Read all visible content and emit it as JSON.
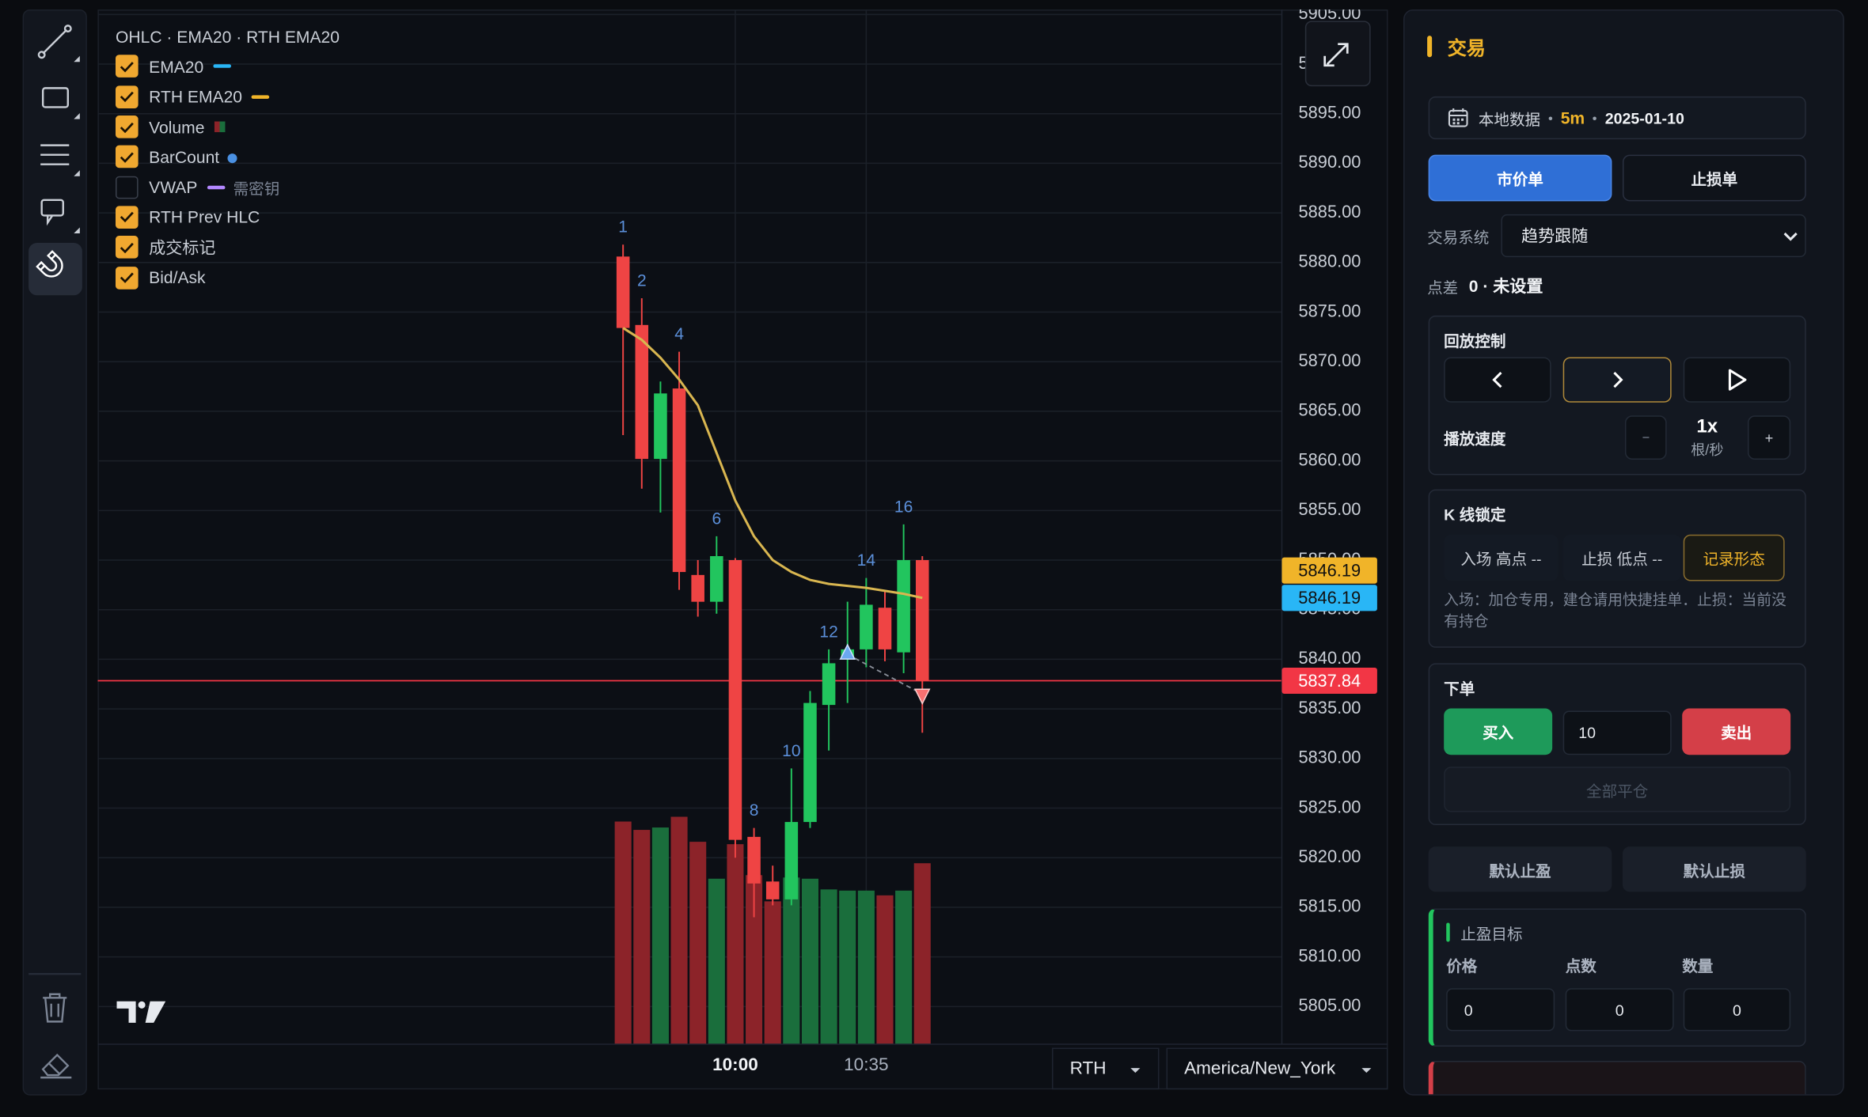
{
  "chart": {
    "type": "candlestick",
    "legend_title": "OHLC · EMA20 · RTH EMA20",
    "legend": [
      {
        "label": "EMA20",
        "checked": true,
        "marker": "dash",
        "color": "#29b6f6"
      },
      {
        "label": "RTH EMA20",
        "checked": true,
        "marker": "dash",
        "color": "#f0b429"
      },
      {
        "label": "Volume",
        "checked": true,
        "marker": "square",
        "color": "#8c2329"
      },
      {
        "label": "BarCount",
        "checked": true,
        "marker": "dot",
        "color": "#4a90e2"
      },
      {
        "label": "VWAP",
        "checked": false,
        "marker": "dash",
        "color": "#b388ff",
        "note": "需密钥"
      },
      {
        "label": "RTH Prev HLC",
        "checked": true
      },
      {
        "label": "成交标记",
        "checked": true
      },
      {
        "label": "Bid/Ask",
        "checked": true
      }
    ],
    "categories": [
      null,
      null,
      null,
      null,
      null,
      null,
      "10:00",
      null,
      null,
      null,
      null,
      null,
      null,
      "10:35",
      null,
      null,
      null
    ],
    "open": [
      5880.6,
      5873.7,
      5860.2,
      5867.3,
      5848.5,
      5845.8,
      5850,
      5822.1,
      5817.6,
      5815.8,
      5823.6,
      5835.4,
      5840,
      5841,
      5845.2,
      5840.7,
      5850
    ],
    "high": [
      5881.8,
      5876.4,
      5868,
      5871,
      5850,
      5852.4,
      5850.2,
      5823,
      5819.2,
      5829,
      5836.8,
      5841,
      5845.8,
      5848.2,
      5847,
      5853.6,
      5850.4
    ],
    "low": [
      5862.6,
      5857.2,
      5854.8,
      5847,
      5844.3,
      5844.6,
      5820,
      5814,
      5815.2,
      5815.2,
      5823,
      5830.8,
      5835.6,
      5839.2,
      5839.8,
      5838.6,
      5832.6
    ],
    "close": [
      5873.4,
      5860.2,
      5866.8,
      5848.8,
      5845.8,
      5850.4,
      5821.8,
      5817.4,
      5815.8,
      5823.6,
      5835.6,
      5839.6,
      5841,
      5845.5,
      5841,
      5850,
      5837.84
    ],
    "volume": [
      187,
      180,
      182,
      191,
      170,
      139,
      168,
      142,
      120,
      140,
      139,
      130,
      129,
      129,
      125,
      129,
      152
    ],
    "ema": {
      "color": "#d9b650",
      "values": [
        5873.4,
        5872.2,
        5870.4,
        5868.2,
        5865.6,
        5860.8,
        5856,
        5852.4,
        5850,
        5848.8,
        5848,
        5847.6,
        5847.4,
        5847.2,
        5846.9,
        5846.6,
        5846.19
      ]
    },
    "bar_numbers": [
      1,
      2,
      null,
      4,
      null,
      6,
      null,
      8,
      null,
      10,
      null,
      12,
      null,
      14,
      null,
      16,
      null
    ],
    "buy_marks": [
      null,
      null,
      null,
      null,
      null,
      null,
      null,
      null,
      null,
      null,
      null,
      null,
      5840.5,
      null,
      null,
      null,
      null
    ],
    "sell_marks": [
      null,
      null,
      null,
      null,
      null,
      null,
      null,
      null,
      null,
      null,
      null,
      null,
      null,
      null,
      null,
      null,
      5836.5
    ],
    "up_color": "#22c55e",
    "down_color": "#ef4444",
    "volume_up_color": "#1a6e3c",
    "volume_down_color": "#8c2329",
    "ylim": [
      5801.2,
      5905.5
    ],
    "yticks": [
      {
        "value": 5905,
        "label": "5905.00"
      },
      {
        "value": 5900,
        "label": "5900.00"
      },
      {
        "value": 5895,
        "label": "5895.00"
      },
      {
        "value": 5890,
        "label": "5890.00"
      },
      {
        "value": 5885,
        "label": "5885.00"
      },
      {
        "value": 5880,
        "label": "5880.00"
      },
      {
        "value": 5875,
        "label": "5875.00"
      },
      {
        "value": 5870,
        "label": "5870.00"
      },
      {
        "value": 5865,
        "label": "5865.00"
      },
      {
        "value": 5860,
        "label": "5860.00"
      },
      {
        "value": 5855,
        "label": "5855.00"
      },
      {
        "value": 5850,
        "label": "5850.00"
      },
      {
        "value": 5845,
        "label": "5845.00"
      },
      {
        "value": 5840,
        "label": "5840.00"
      },
      {
        "value": 5835,
        "label": "5835.00"
      },
      {
        "value": 5830,
        "label": "5830.00"
      },
      {
        "value": 5825,
        "label": "5825.00"
      },
      {
        "value": 5820,
        "label": "5820.00"
      },
      {
        "value": 5815,
        "label": "5815.00"
      },
      {
        "value": 5810,
        "label": "5810.00"
      },
      {
        "value": 5805,
        "label": "5805.00"
      }
    ],
    "grid": true,
    "price_badges": [
      {
        "value": 5846.19,
        "label": "5846.19",
        "color": "#f0b429",
        "text_color": "#111111"
      },
      {
        "value": 5846.19,
        "label": "5846.19",
        "color": "#29b6f6",
        "text_color": "#111111"
      },
      {
        "value": 5837.84,
        "label": "5837.84",
        "color": "#f23645",
        "text_color": "#ffffff",
        "line": true
      }
    ]
  },
  "timeframe": {
    "session": "RTH",
    "timezone": "America/New_York"
  },
  "panel": {
    "title": "交易",
    "source": {
      "label": "本地数据",
      "interval": "5m",
      "date": "2025-01-10"
    },
    "order_types": [
      "市价单",
      "止损单"
    ],
    "system": {
      "label": "交易系统",
      "value": "趋势跟随"
    },
    "spread": {
      "label": "点差",
      "value": "0 · 未设置"
    },
    "replay": {
      "title": "回放控制",
      "speed_label": "播放速度",
      "decrease": "−",
      "speed": "1x",
      "speed_unit": "根/秒",
      "increase": "+"
    },
    "lock": {
      "title": "K 线锁定",
      "entry": "入场 高点 --",
      "stop": "止损 低点 --",
      "record": "记录形态",
      "note": "入场：加仓专用，建仓请用快捷挂单．止损：当前没有持仓"
    },
    "order": {
      "title": "下单",
      "buy": "买入",
      "qty": 10,
      "sell": "卖出",
      "close_all": "全部平仓"
    },
    "defaults": [
      "默认止盈",
      "默认止损"
    ],
    "take_profit": {
      "title": "止盈目标",
      "columns": [
        "价格",
        "点数",
        "数量"
      ],
      "values": [
        0,
        0,
        0
      ]
    }
  }
}
